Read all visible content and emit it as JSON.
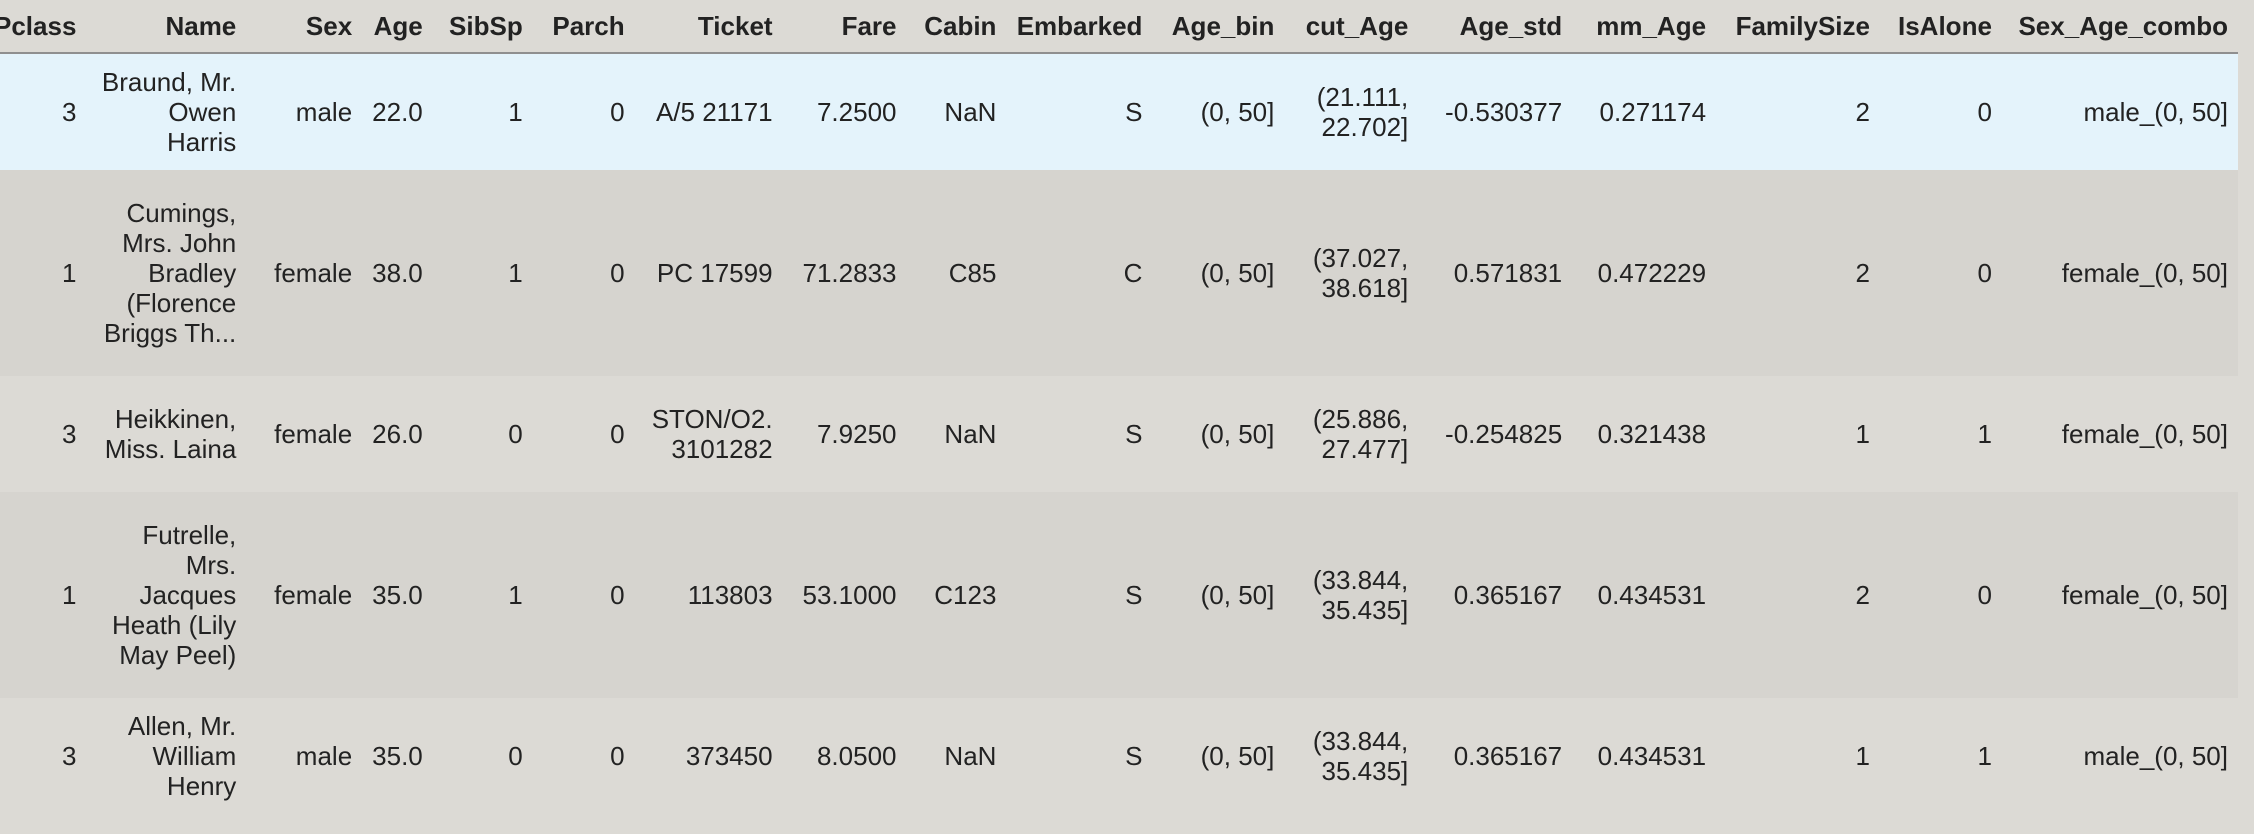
{
  "table": {
    "columns": [
      "Pclass",
      "Name",
      "Sex",
      "Age",
      "SibSp",
      "Parch",
      "Ticket",
      "Fare",
      "Cabin",
      "Embarked",
      "Age_bin",
      "cut_Age",
      "Age_std",
      "mm_Age",
      "FamilySize",
      "IsAlone",
      "Sex_Age_combo"
    ],
    "rows": [
      {
        "Pclass": "3",
        "Name": "Braund, Mr. Owen Harris",
        "Sex": "male",
        "Age": "22.0",
        "SibSp": "1",
        "Parch": "0",
        "Ticket": "A/5 21171",
        "Fare": "7.2500",
        "Cabin": "NaN",
        "Embarked": "S",
        "Age_bin": "(0, 50]",
        "cut_Age": "(21.111, 22.702]",
        "Age_std": "-0.530377",
        "mm_Age": "0.271174",
        "FamilySize": "2",
        "IsAlone": "0",
        "Sex_Age_combo": "male_(0, 50]"
      },
      {
        "Pclass": "1",
        "Name": "Cumings, Mrs. John Bradley (Florence Briggs Th...",
        "Sex": "female",
        "Age": "38.0",
        "SibSp": "1",
        "Parch": "0",
        "Ticket": "PC 17599",
        "Fare": "71.2833",
        "Cabin": "C85",
        "Embarked": "C",
        "Age_bin": "(0, 50]",
        "cut_Age": "(37.027, 38.618]",
        "Age_std": "0.571831",
        "mm_Age": "0.472229",
        "FamilySize": "2",
        "IsAlone": "0",
        "Sex_Age_combo": "female_(0, 50]"
      },
      {
        "Pclass": "3",
        "Name": "Heikkinen, Miss. Laina",
        "Sex": "female",
        "Age": "26.0",
        "SibSp": "0",
        "Parch": "0",
        "Ticket": "STON/O2. 3101282",
        "Fare": "7.9250",
        "Cabin": "NaN",
        "Embarked": "S",
        "Age_bin": "(0, 50]",
        "cut_Age": "(25.886, 27.477]",
        "Age_std": "-0.254825",
        "mm_Age": "0.321438",
        "FamilySize": "1",
        "IsAlone": "1",
        "Sex_Age_combo": "female_(0, 50]"
      },
      {
        "Pclass": "1",
        "Name": "Futrelle, Mrs. Jacques Heath (Lily May Peel)",
        "Sex": "female",
        "Age": "35.0",
        "SibSp": "1",
        "Parch": "0",
        "Ticket": "113803",
        "Fare": "53.1000",
        "Cabin": "C123",
        "Embarked": "S",
        "Age_bin": "(0, 50]",
        "cut_Age": "(33.844, 35.435]",
        "Age_std": "0.365167",
        "mm_Age": "0.434531",
        "FamilySize": "2",
        "IsAlone": "0",
        "Sex_Age_combo": "female_(0, 50]"
      },
      {
        "Pclass": "3",
        "Name": "Allen, Mr. William Henry",
        "Sex": "male",
        "Age": "35.0",
        "SibSp": "0",
        "Parch": "0",
        "Ticket": "373450",
        "Fare": "8.0500",
        "Cabin": "NaN",
        "Embarked": "S",
        "Age_bin": "(0, 50]",
        "cut_Age": "(33.844, 35.435]",
        "Age_std": "0.365167",
        "mm_Age": "0.434531",
        "FamilySize": "1",
        "IsAlone": "1",
        "Sex_Age_combo": "male_(0, 50]"
      }
    ]
  }
}
